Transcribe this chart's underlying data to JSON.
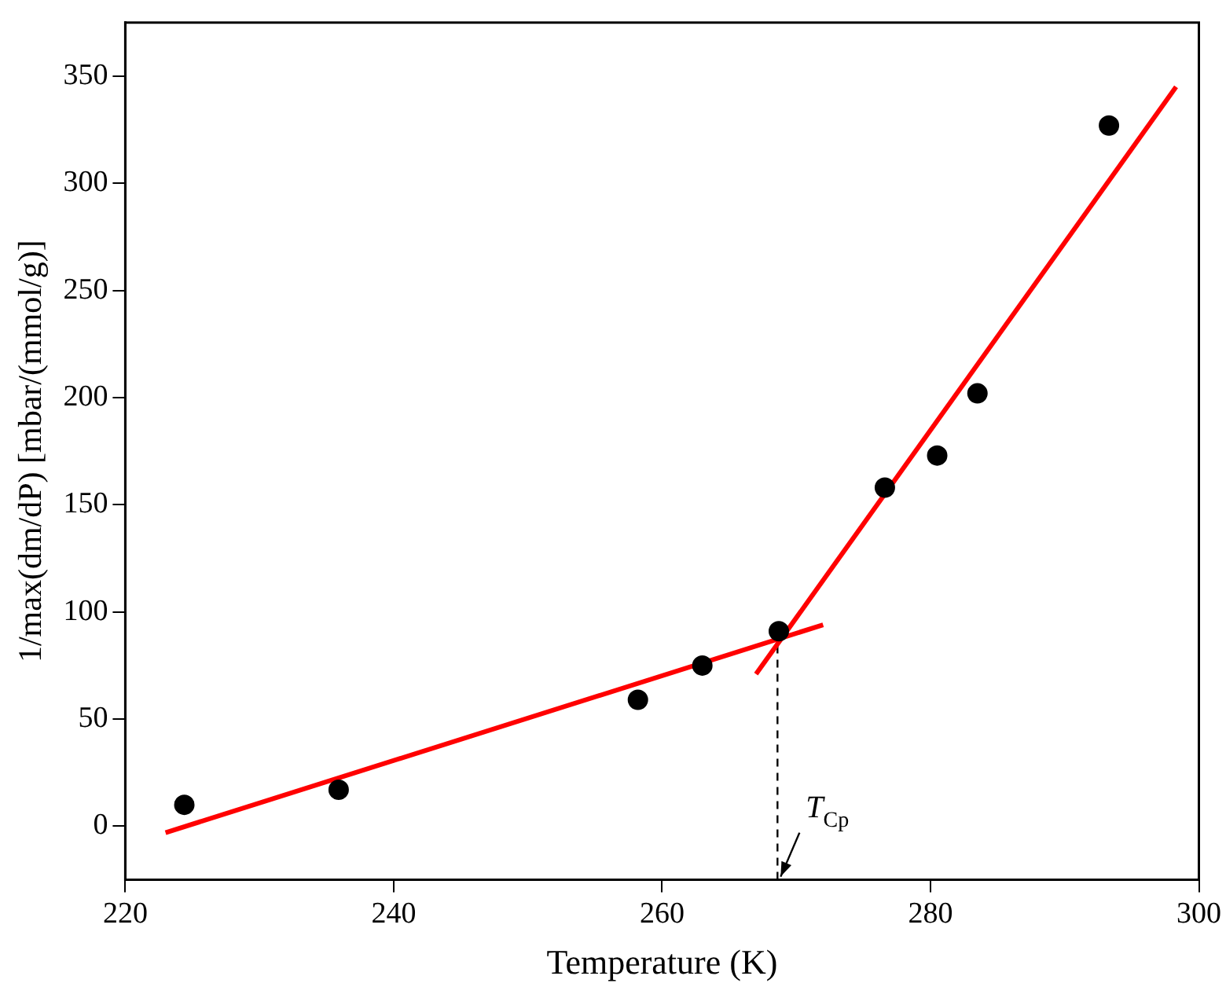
{
  "chart_data": {
    "type": "scatter",
    "xlabel": "Temperature (K)",
    "ylabel": "1/max(dm/dP) [mbar/(mmol/g)]",
    "xlim": [
      220,
      300
    ],
    "xticks": [
      220,
      240,
      260,
      280,
      300
    ],
    "ylim": [
      -25,
      375
    ],
    "yticks": [
      0,
      50,
      100,
      150,
      200,
      250,
      300,
      350
    ],
    "grid": false,
    "legend": false,
    "marker": "circle",
    "series": [
      {
        "color": "#000000",
        "x": [
          224.4,
          235.9,
          258.2,
          263,
          268.7,
          276.6,
          280.5,
          283.5,
          293.3
        ],
        "values": [
          10,
          17,
          59,
          75,
          91,
          158,
          173,
          202,
          327
        ]
      },
      {
        "type": "line",
        "color": "#ff0000",
        "marker": "none",
        "line_style": "solid",
        "x": [
          223,
          272
        ],
        "values": [
          -3,
          94
        ]
      },
      {
        "type": "line",
        "color": "#ff0000",
        "marker": "none",
        "line_style": "solid",
        "x": [
          267,
          298.3
        ],
        "values": [
          71,
          345
        ]
      },
      {
        "type": "line",
        "color": "#000000",
        "marker": "none",
        "line_style": "dashed",
        "x": [
          268.6,
          268.6
        ],
        "values": [
          -25,
          88
        ]
      }
    ],
    "annotations": [
      {
        "text": "T$_{Cp}$",
        "x": 268.6,
        "y": -25
      }
    ]
  }
}
